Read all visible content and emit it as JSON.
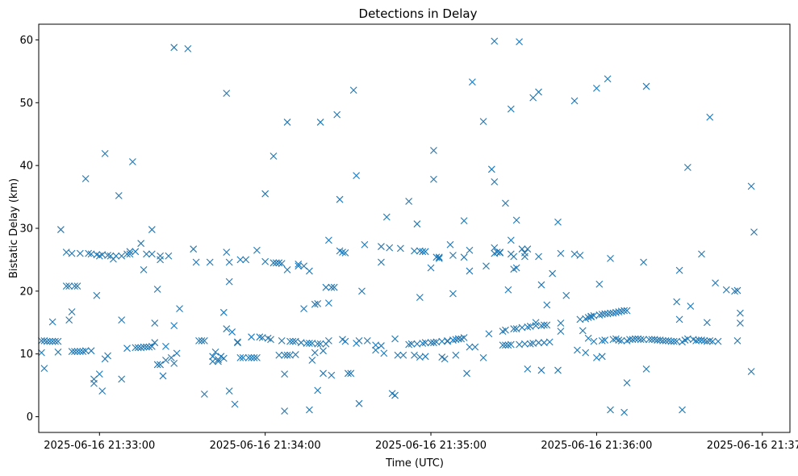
{
  "chart_data": {
    "type": "scatter",
    "title": "Detections in Delay",
    "xlabel": "Time (UTC)",
    "ylabel": "Bistatic Delay (km)",
    "marker": "x",
    "color": "#1f77b4",
    "grid": false,
    "legend": "none",
    "x_unit": "seconds after 2025-06-16 21:33:00 UTC",
    "xlim": [
      -22,
      250
    ],
    "ylim": [
      -2.5,
      62.5
    ],
    "x_ticks": [
      {
        "value": 0,
        "label": "2025-06-16 21:33:00"
      },
      {
        "value": 60,
        "label": "2025-06-16 21:34:00"
      },
      {
        "value": 120,
        "label": "2025-06-16 21:35:00"
      },
      {
        "value": 180,
        "label": "2025-06-16 21:36:00"
      },
      {
        "value": 240,
        "label": "2025-06-16 21:37:00"
      }
    ],
    "y_ticks": [
      {
        "value": 0,
        "label": "0"
      },
      {
        "value": 10,
        "label": "10"
      },
      {
        "value": 20,
        "label": "20"
      },
      {
        "value": 30,
        "label": "30"
      },
      {
        "value": 40,
        "label": "40"
      },
      {
        "value": 50,
        "label": "50"
      },
      {
        "value": 60,
        "label": "60"
      }
    ],
    "points": [
      [
        -21,
        12.1
      ],
      [
        -21,
        10.2
      ],
      [
        -20,
        7.7
      ],
      [
        -20,
        12.1
      ],
      [
        -19,
        12.0
      ],
      [
        -18,
        12.0
      ],
      [
        -17,
        15.1
      ],
      [
        -17,
        12.0
      ],
      [
        -16,
        12.0
      ],
      [
        -15,
        10.3
      ],
      [
        -15,
        12.0
      ],
      [
        -14,
        29.8
      ],
      [
        -12,
        26.2
      ],
      [
        -12,
        20.8
      ],
      [
        -11,
        20.8
      ],
      [
        -11,
        15.4
      ],
      [
        -10,
        16.7
      ],
      [
        -10,
        10.4
      ],
      [
        -10,
        26.0
      ],
      [
        -9,
        20.8
      ],
      [
        -9,
        10.4
      ],
      [
        -8,
        20.8
      ],
      [
        -8,
        10.4
      ],
      [
        -7,
        26.0
      ],
      [
        -7,
        10.4
      ],
      [
        -6,
        10.4
      ],
      [
        -5,
        10.5
      ],
      [
        -5,
        37.9
      ],
      [
        -4,
        26.0
      ],
      [
        -3,
        10.5
      ],
      [
        -3,
        25.9
      ],
      [
        -2,
        6.0
      ],
      [
        -2,
        5.3
      ],
      [
        -1,
        25.8
      ],
      [
        -1,
        19.3
      ],
      [
        0,
        6.8
      ],
      [
        0,
        25.6
      ],
      [
        1,
        4.1
      ],
      [
        1,
        25.8
      ],
      [
        2,
        9.2
      ],
      [
        2,
        41.9
      ],
      [
        3,
        25.7
      ],
      [
        3,
        9.7
      ],
      [
        4,
        25.6
      ],
      [
        5,
        25.1
      ],
      [
        6,
        25.6
      ],
      [
        7,
        35.2
      ],
      [
        8,
        6.0
      ],
      [
        8,
        15.4
      ],
      [
        8,
        25.6
      ],
      [
        10,
        10.9
      ],
      [
        10,
        25.9
      ],
      [
        11,
        26.3
      ],
      [
        11,
        25.9
      ],
      [
        12,
        40.6
      ],
      [
        13,
        26.3
      ],
      [
        13,
        11.0
      ],
      [
        14,
        11.0
      ],
      [
        15,
        11.0
      ],
      [
        15,
        27.6
      ],
      [
        16,
        23.4
      ],
      [
        16,
        11.1
      ],
      [
        17,
        11.1
      ],
      [
        17,
        25.9
      ],
      [
        18,
        11.1
      ],
      [
        19,
        29.8
      ],
      [
        19,
        11.2
      ],
      [
        19,
        25.9
      ],
      [
        20,
        14.9
      ],
      [
        20,
        11.8
      ],
      [
        21,
        8.3
      ],
      [
        21,
        20.3
      ],
      [
        22,
        8.3
      ],
      [
        22,
        25.6
      ],
      [
        22,
        25.0
      ],
      [
        23,
        6.5
      ],
      [
        24,
        9.0
      ],
      [
        24,
        11.2
      ],
      [
        25,
        25.6
      ],
      [
        26,
        9.4
      ],
      [
        27,
        8.5
      ],
      [
        27,
        58.8
      ],
      [
        27,
        14.5
      ],
      [
        28,
        10.1
      ],
      [
        29,
        17.2
      ],
      [
        32,
        58.6
      ],
      [
        34,
        26.7
      ],
      [
        35,
        24.6
      ],
      [
        36,
        12.1
      ],
      [
        37,
        12.1
      ],
      [
        38,
        12.1
      ],
      [
        38,
        3.6
      ],
      [
        40,
        24.6
      ],
      [
        41,
        9.6
      ],
      [
        41,
        8.8
      ],
      [
        42,
        10.3
      ],
      [
        43,
        9.1
      ],
      [
        43,
        8.8
      ],
      [
        44,
        9.6
      ],
      [
        45,
        9.3
      ],
      [
        45,
        16.6
      ],
      [
        46,
        26.2
      ],
      [
        46,
        14.0
      ],
      [
        46,
        51.5
      ],
      [
        47,
        4.1
      ],
      [
        47,
        24.6
      ],
      [
        48,
        13.5
      ],
      [
        47,
        21.5
      ],
      [
        49,
        2.0
      ],
      [
        50,
        11.9
      ],
      [
        50,
        11.8
      ],
      [
        51,
        9.4
      ],
      [
        51,
        25.0
      ],
      [
        52,
        9.4
      ],
      [
        53,
        25.0
      ],
      [
        54,
        9.4
      ],
      [
        55,
        9.4
      ],
      [
        55,
        12.7
      ],
      [
        56,
        9.4
      ],
      [
        57,
        9.4
      ],
      [
        57,
        26.5
      ],
      [
        58,
        12.7
      ],
      [
        59,
        12.6
      ],
      [
        60,
        35.5
      ],
      [
        60,
        24.7
      ],
      [
        61,
        12.5
      ],
      [
        62,
        12.3
      ],
      [
        63,
        41.5
      ],
      [
        63,
        24.5
      ],
      [
        64,
        24.5
      ],
      [
        65,
        24.5
      ],
      [
        65,
        9.8
      ],
      [
        66,
        12.1
      ],
      [
        66,
        24.4
      ],
      [
        67,
        9.8
      ],
      [
        67,
        0.9
      ],
      [
        67,
        6.8
      ],
      [
        68,
        46.9
      ],
      [
        68,
        9.8
      ],
      [
        68,
        23.4
      ],
      [
        69,
        12.0
      ],
      [
        69,
        9.8
      ],
      [
        70,
        12.0
      ],
      [
        71,
        9.9
      ],
      [
        71,
        12.0
      ],
      [
        72,
        24.0
      ],
      [
        72,
        24.3
      ],
      [
        73,
        11.8
      ],
      [
        74,
        24.0
      ],
      [
        74,
        17.2
      ],
      [
        75,
        11.7
      ],
      [
        76,
        23.2
      ],
      [
        76,
        11.7
      ],
      [
        77,
        9.0
      ],
      [
        76,
        1.1
      ],
      [
        77,
        11.7
      ],
      [
        78,
        17.9
      ],
      [
        78,
        10.2
      ],
      [
        79,
        11.6
      ],
      [
        79,
        4.2
      ],
      [
        79,
        18.0
      ],
      [
        80,
        11.6
      ],
      [
        80,
        46.9
      ],
      [
        81,
        6.9
      ],
      [
        81,
        10.5
      ],
      [
        82,
        20.6
      ],
      [
        82,
        11.6
      ],
      [
        83,
        28.1
      ],
      [
        83,
        18.1
      ],
      [
        83,
        12.1
      ],
      [
        84,
        6.6
      ],
      [
        84,
        20.6
      ],
      [
        85,
        20.6
      ],
      [
        86,
        48.1
      ],
      [
        87,
        26.4
      ],
      [
        87,
        34.6
      ],
      [
        88,
        12.3
      ],
      [
        88,
        26.2
      ],
      [
        89,
        12.0
      ],
      [
        89,
        26.1
      ],
      [
        90,
        6.9
      ],
      [
        91,
        6.9
      ],
      [
        92,
        52.0
      ],
      [
        93,
        11.7
      ],
      [
        93,
        38.4
      ],
      [
        94,
        12.1
      ],
      [
        94,
        2.1
      ],
      [
        95,
        20.0
      ],
      [
        96,
        27.4
      ],
      [
        97,
        12.1
      ],
      [
        100,
        11.4
      ],
      [
        100,
        10.6
      ],
      [
        102,
        27.1
      ],
      [
        102,
        11.3
      ],
      [
        102,
        24.6
      ],
      [
        103,
        10.1
      ],
      [
        104,
        31.8
      ],
      [
        105,
        26.9
      ],
      [
        106,
        3.7
      ],
      [
        107,
        3.4
      ],
      [
        107,
        12.4
      ],
      [
        108,
        9.8
      ],
      [
        109,
        26.8
      ],
      [
        110,
        9.8
      ],
      [
        112,
        34.3
      ],
      [
        112,
        11.5
      ],
      [
        113,
        11.6
      ],
      [
        114,
        9.8
      ],
      [
        114,
        26.4
      ],
      [
        115,
        30.7
      ],
      [
        115,
        11.6
      ],
      [
        116,
        26.4
      ],
      [
        116,
        9.5
      ],
      [
        116,
        19.0
      ],
      [
        117,
        26.3
      ],
      [
        117,
        11.7
      ],
      [
        118,
        9.6
      ],
      [
        118,
        26.3
      ],
      [
        118,
        11.8
      ],
      [
        120,
        11.8
      ],
      [
        120,
        23.7
      ],
      [
        121,
        42.4
      ],
      [
        121,
        11.8
      ],
      [
        121,
        37.8
      ],
      [
        122,
        25.4
      ],
      [
        122,
        11.9
      ],
      [
        123,
        25.2
      ],
      [
        123,
        25.4
      ],
      [
        124,
        9.5
      ],
      [
        124,
        12.0
      ],
      [
        125,
        9.2
      ],
      [
        126,
        12.0
      ],
      [
        126,
        12.1
      ],
      [
        127,
        27.4
      ],
      [
        128,
        19.6
      ],
      [
        128,
        12.2
      ],
      [
        128,
        25.7
      ],
      [
        129,
        9.8
      ],
      [
        129,
        12.3
      ],
      [
        130,
        12.4
      ],
      [
        130,
        12.4
      ],
      [
        131,
        12.4
      ],
      [
        132,
        31.2
      ],
      [
        132,
        12.6
      ],
      [
        132,
        25.4
      ],
      [
        133,
        6.9
      ],
      [
        134,
        26.5
      ],
      [
        134,
        23.2
      ],
      [
        134,
        11.1
      ],
      [
        135,
        53.3
      ],
      [
        136,
        11.1
      ],
      [
        139,
        9.4
      ],
      [
        139,
        47.0
      ],
      [
        140,
        24.0
      ],
      [
        141,
        13.2
      ],
      [
        142,
        39.4
      ],
      [
        143,
        26.0
      ],
      [
        143,
        37.4
      ],
      [
        143,
        59.8
      ],
      [
        143,
        26.9
      ],
      [
        144,
        26.2
      ],
      [
        145,
        26.1
      ],
      [
        145,
        26.2
      ],
      [
        146,
        13.6
      ],
      [
        146,
        11.4
      ],
      [
        147,
        11.4
      ],
      [
        147,
        13.8
      ],
      [
        147,
        34.0
      ],
      [
        148,
        20.2
      ],
      [
        148,
        11.4
      ],
      [
        149,
        49.0
      ],
      [
        149,
        11.5
      ],
      [
        149,
        28.1
      ],
      [
        149,
        25.9
      ],
      [
        150,
        23.5
      ],
      [
        150,
        14.0
      ],
      [
        150,
        25.5
      ],
      [
        151,
        31.3
      ],
      [
        151,
        23.7
      ],
      [
        151,
        14.0
      ],
      [
        152,
        11.5
      ],
      [
        152,
        59.7
      ],
      [
        153,
        14.2
      ],
      [
        153,
        26.7
      ],
      [
        154,
        25.5
      ],
      [
        154,
        11.6
      ],
      [
        154,
        26.1
      ],
      [
        155,
        7.6
      ],
      [
        155,
        14.3
      ],
      [
        155,
        26.7
      ],
      [
        156,
        11.6
      ],
      [
        156,
        14.4
      ],
      [
        157,
        50.8
      ],
      [
        157,
        11.7
      ],
      [
        158,
        15.0
      ],
      [
        158,
        14.5
      ],
      [
        159,
        25.5
      ],
      [
        159,
        51.7
      ],
      [
        159,
        11.8
      ],
      [
        160,
        14.5
      ],
      [
        160,
        21.0
      ],
      [
        160,
        7.4
      ],
      [
        161,
        11.8
      ],
      [
        161,
        14.6
      ],
      [
        162,
        14.6
      ],
      [
        162,
        17.8
      ],
      [
        163,
        11.9
      ],
      [
        164,
        22.8
      ],
      [
        166,
        31.0
      ],
      [
        166,
        7.4
      ],
      [
        167,
        26.0
      ],
      [
        167,
        13.6
      ],
      [
        167,
        14.9
      ],
      [
        169,
        19.3
      ],
      [
        172,
        50.3
      ],
      [
        172,
        25.9
      ],
      [
        173,
        10.6
      ],
      [
        174,
        25.7
      ],
      [
        174,
        15.5
      ],
      [
        175,
        13.7
      ],
      [
        176,
        15.6
      ],
      [
        176,
        10.2
      ],
      [
        177,
        12.5
      ],
      [
        177,
        15.8
      ],
      [
        178,
        15.9
      ],
      [
        178,
        16.0
      ],
      [
        179,
        12.0
      ],
      [
        179,
        16.1
      ],
      [
        180,
        9.4
      ],
      [
        180,
        52.3
      ],
      [
        181,
        16.2
      ],
      [
        181,
        21.1
      ],
      [
        182,
        9.6
      ],
      [
        182,
        12.1
      ],
      [
        182,
        16.3
      ],
      [
        183,
        16.4
      ],
      [
        183,
        12.2
      ],
      [
        184,
        16.4
      ],
      [
        184,
        53.8
      ],
      [
        185,
        1.1
      ],
      [
        185,
        25.2
      ],
      [
        185,
        16.5
      ],
      [
        186,
        16.5
      ],
      [
        186,
        12.3
      ],
      [
        187,
        16.6
      ],
      [
        187,
        12.4
      ],
      [
        188,
        16.7
      ],
      [
        188,
        12.2
      ],
      [
        189,
        16.8
      ],
      [
        189,
        12.1
      ],
      [
        190,
        16.9
      ],
      [
        190,
        0.7
      ],
      [
        191,
        12.1
      ],
      [
        191,
        16.9
      ],
      [
        191,
        5.4
      ],
      [
        192,
        12.3
      ],
      [
        193,
        12.3
      ],
      [
        194,
        12.4
      ],
      [
        195,
        12.4
      ],
      [
        196,
        12.3
      ],
      [
        197,
        24.6
      ],
      [
        197,
        12.3
      ],
      [
        198,
        7.6
      ],
      [
        198,
        52.6
      ],
      [
        199,
        12.3
      ],
      [
        200,
        12.3
      ],
      [
        201,
        12.3
      ],
      [
        202,
        12.2
      ],
      [
        203,
        12.2
      ],
      [
        204,
        12.1
      ],
      [
        205,
        12.1
      ],
      [
        206,
        12.1
      ],
      [
        207,
        12.0
      ],
      [
        208,
        12.0
      ],
      [
        209,
        12.0
      ],
      [
        209,
        18.3
      ],
      [
        210,
        23.3
      ],
      [
        210,
        15.5
      ],
      [
        211,
        11.9
      ],
      [
        211,
        1.1
      ],
      [
        212,
        12.2
      ],
      [
        213,
        39.7
      ],
      [
        213,
        12.4
      ],
      [
        214,
        17.6
      ],
      [
        215,
        12.3
      ],
      [
        216,
        12.1
      ],
      [
        217,
        12.2
      ],
      [
        218,
        12.2
      ],
      [
        218,
        25.9
      ],
      [
        219,
        12.1
      ],
      [
        220,
        12.0
      ],
      [
        220,
        15.0
      ],
      [
        221,
        12.1
      ],
      [
        221,
        47.7
      ],
      [
        222,
        12.0
      ],
      [
        223,
        21.3
      ],
      [
        224,
        12.0
      ],
      [
        227,
        20.2
      ],
      [
        230,
        20.0
      ],
      [
        231,
        20.1
      ],
      [
        231,
        12.1
      ],
      [
        232,
        16.5
      ],
      [
        232,
        14.9
      ],
      [
        236,
        36.7
      ],
      [
        236,
        7.2
      ],
      [
        237,
        29.4
      ]
    ]
  }
}
